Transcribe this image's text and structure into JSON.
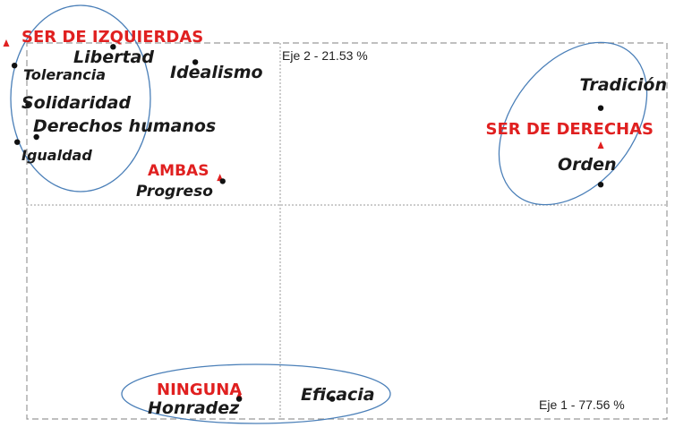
{
  "chart_data": {
    "type": "scatter",
    "title": "",
    "x_axis_label": "Eje 1  -  77.56 %",
    "y_axis_label": "Eje 2  -  21.53 %",
    "grid": false,
    "categories": [
      {
        "name": "SER DE IZQUIERDAS",
        "x": -1.0,
        "y": 0.95
      },
      {
        "name": "SER DE DERECHAS",
        "x": 1.17,
        "y": 0.35
      },
      {
        "name": "AMBAS",
        "x": -0.22,
        "y": 0.16
      },
      {
        "name": "NINGUNA",
        "x": -0.15,
        "y": -1.12
      }
    ],
    "words": [
      {
        "name": "Libertad",
        "x": -0.61,
        "y": 0.93
      },
      {
        "name": "Tolerancia",
        "x": -0.97,
        "y": 0.82
      },
      {
        "name": "Idealismo",
        "x": -0.31,
        "y": 0.84
      },
      {
        "name": "Solidaridad",
        "x": -0.92,
        "y": 0.59
      },
      {
        "name": "Derechos humanos",
        "x": -0.89,
        "y": 0.4
      },
      {
        "name": "Igualdad",
        "x": -0.96,
        "y": 0.37
      },
      {
        "name": "Progreso",
        "x": -0.21,
        "y": 0.14
      },
      {
        "name": "Tradición",
        "x": 1.17,
        "y": 0.57
      },
      {
        "name": "Orden",
        "x": 1.17,
        "y": 0.12
      },
      {
        "name": "Honradez",
        "x": -0.15,
        "y": -1.14
      },
      {
        "name": "Eficacia",
        "x": 0.19,
        "y": -1.14
      }
    ],
    "groups": [
      {
        "members": [
          "SER DE IZQUIERDAS",
          "Libertad",
          "Tolerancia",
          "Solidaridad",
          "Derechos humanos",
          "Igualdad"
        ]
      },
      {
        "members": [
          "SER DE DERECHAS",
          "Tradición",
          "Orden"
        ]
      },
      {
        "members": [
          "NINGUNA",
          "Honradez",
          "Eficacia"
        ]
      }
    ],
    "xlim": [
      -1.05,
      1.45
    ],
    "ylim": [
      -1.2,
      1.05
    ],
    "colors": {
      "category": "#e02020",
      "word": "#111111",
      "ellipse": "#4a7fb8",
      "frame": "#999999"
    }
  }
}
